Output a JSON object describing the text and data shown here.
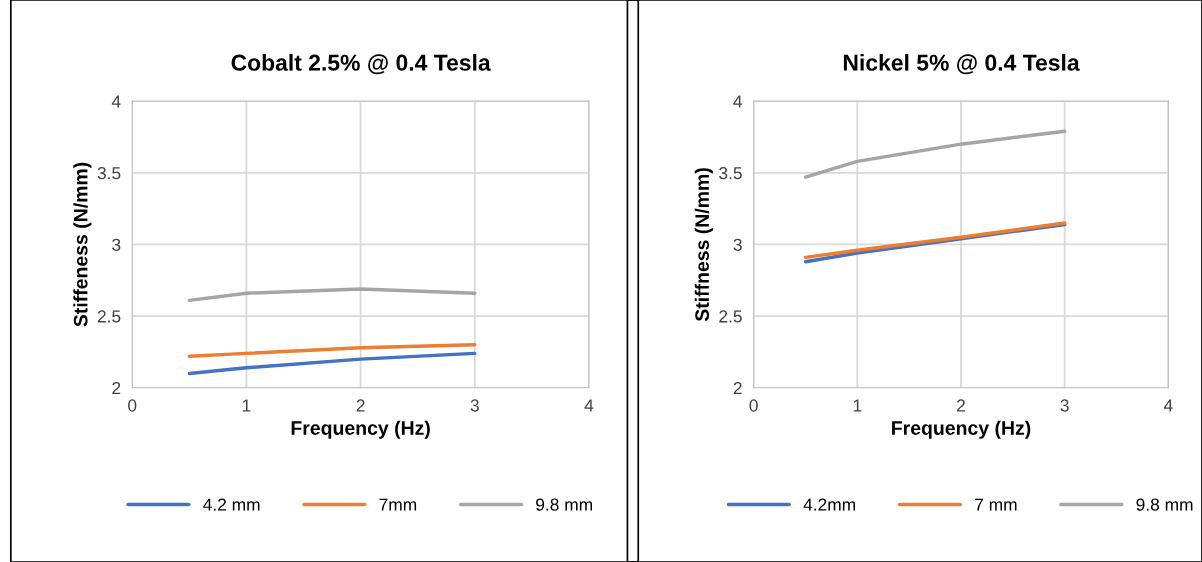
{
  "chart_data": [
    {
      "type": "line",
      "title": "Cobalt 2.5% @ 0.4 Tesla",
      "xlabel": "Frequency (Hz)",
      "ylabel": "Stiffeness (N/mm)",
      "x": [
        0.5,
        1,
        2,
        3
      ],
      "xlim": [
        0,
        4
      ],
      "xticks": [
        0,
        1,
        2,
        3,
        4
      ],
      "ylim": [
        2,
        4
      ],
      "yticks": [
        2,
        2.5,
        3,
        3.5,
        4
      ],
      "grid": true,
      "legend": "bottom",
      "marker": "none",
      "line_style": "solid",
      "series": [
        {
          "name": "4.2 mm",
          "color": "#4472c4",
          "values": [
            2.1,
            2.14,
            2.2,
            2.24
          ]
        },
        {
          "name": "7mm",
          "color": "#ed7d31",
          "values": [
            2.22,
            2.24,
            2.28,
            2.3
          ]
        },
        {
          "name": "9.8 mm",
          "color": "#a5a5a5",
          "values": [
            2.61,
            2.66,
            2.69,
            2.66
          ]
        }
      ]
    },
    {
      "type": "line",
      "title": "Nickel 5% @ 0.4 Tesla",
      "xlabel": "Frequency (Hz)",
      "ylabel": "Stiffness (N/mm)",
      "x": [
        0.5,
        1,
        2,
        3
      ],
      "xlim": [
        0,
        4
      ],
      "xticks": [
        0,
        1,
        2,
        3,
        4
      ],
      "ylim": [
        2,
        4
      ],
      "yticks": [
        2,
        2.5,
        3,
        3.5,
        4
      ],
      "grid": true,
      "legend": "bottom",
      "marker": "none",
      "line_style": "solid",
      "series": [
        {
          "name": "4.2mm",
          "color": "#4472c4",
          "values": [
            2.88,
            2.94,
            3.04,
            3.14
          ]
        },
        {
          "name": "7 mm",
          "color": "#ed7d31",
          "values": [
            2.91,
            2.96,
            3.05,
            3.15
          ]
        },
        {
          "name": "9.8 mm",
          "color": "#a5a5a5",
          "values": [
            3.47,
            3.58,
            3.7,
            3.79
          ]
        }
      ]
    }
  ]
}
